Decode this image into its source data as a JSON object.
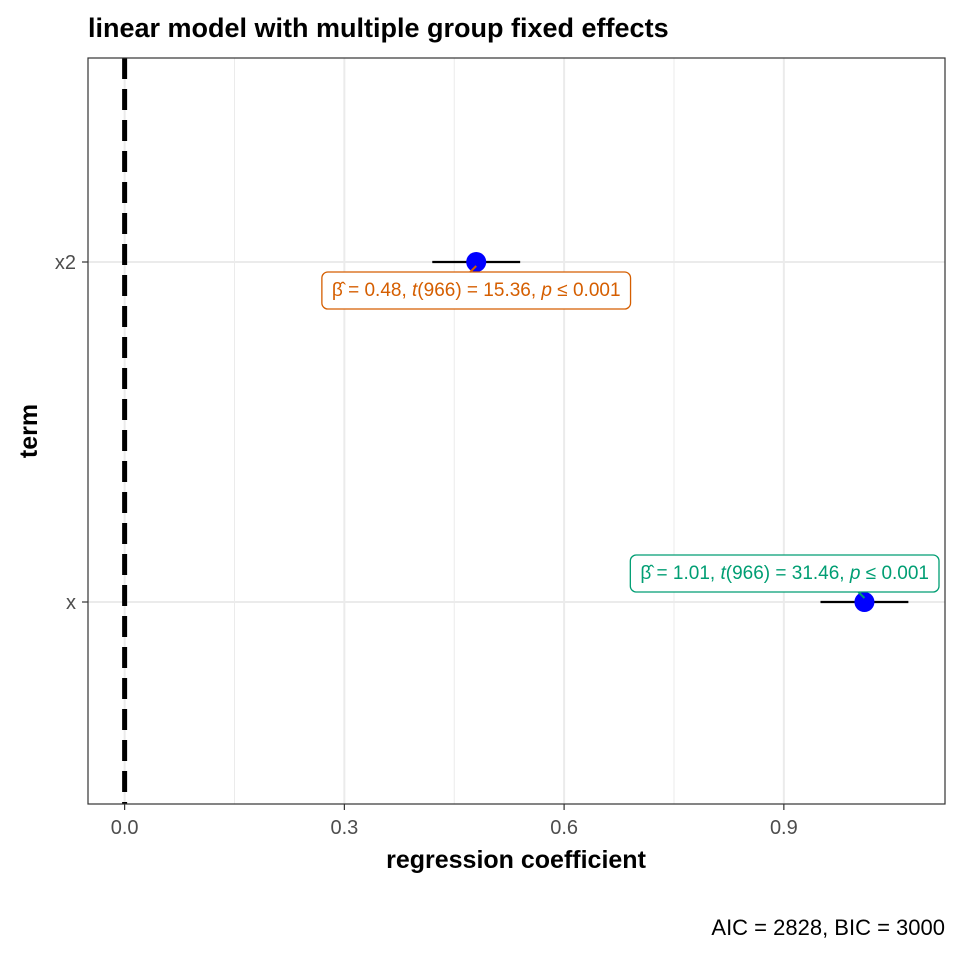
{
  "chart_data": {
    "type": "scatter",
    "title": "linear model with multiple group fixed effects",
    "xlabel": "regression coefficient",
    "ylabel": "term",
    "caption": "AIC = 2828, BIC = 3000",
    "xlim": [
      -0.05,
      1.12
    ],
    "x_ticks": [
      "0.0",
      "0.3",
      "0.6",
      "0.9"
    ],
    "x_tick_values": [
      0.0,
      0.3,
      0.6,
      0.9
    ],
    "grid": true,
    "reference_line": 0,
    "terms": [
      "x2",
      "x"
    ],
    "estimates": [
      {
        "term": "x2",
        "estimate": 0.48,
        "conf_low": 0.42,
        "conf_high": 0.54,
        "label_estimate": "0.48",
        "df": "966",
        "statistic": "15.36",
        "p": "0.001",
        "color": "#d55e00"
      },
      {
        "term": "x",
        "estimate": 1.01,
        "conf_low": 0.95,
        "conf_high": 1.07,
        "label_estimate": "1.01",
        "df": "966",
        "statistic": "31.46",
        "p": "0.001",
        "color": "#009e73"
      }
    ],
    "point_color": "#0000ff"
  }
}
